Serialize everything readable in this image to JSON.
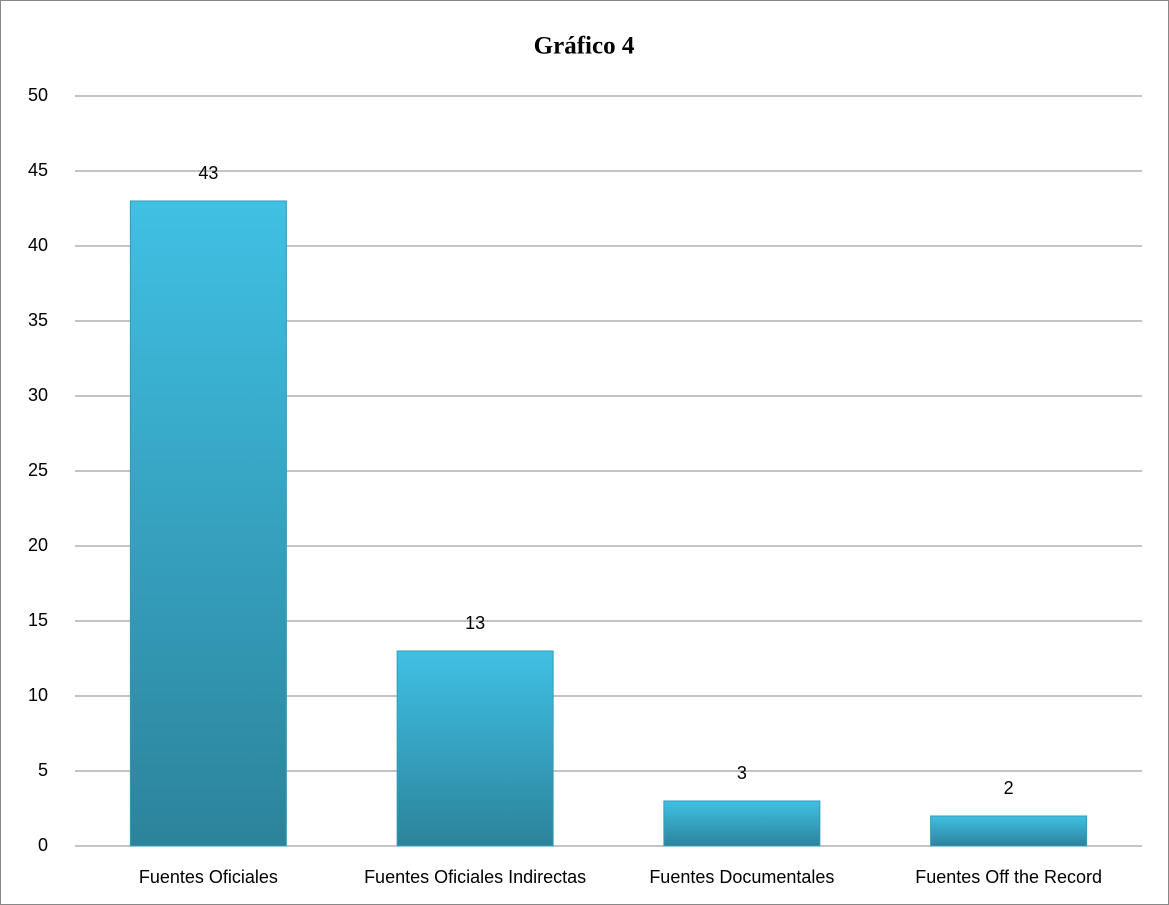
{
  "chart_data": {
    "type": "bar",
    "title": "Gráfico 4",
    "categories": [
      "Fuentes Oficiales",
      "Fuentes Oficiales Indirectas",
      "Fuentes Documentales",
      "Fuentes Off the Record"
    ],
    "values": [
      43,
      13,
      3,
      2
    ],
    "color": "#40c0e4",
    "ylim": [
      0,
      50
    ],
    "yticks": [
      0,
      5,
      10,
      15,
      20,
      25,
      30,
      35,
      40,
      45,
      50
    ],
    "grid": true
  }
}
